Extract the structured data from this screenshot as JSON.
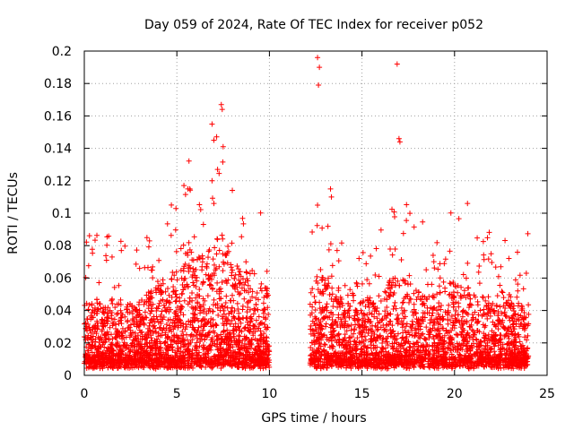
{
  "chart_data": {
    "type": "scatter",
    "title": "Day 059 of 2024, Rate Of TEC Index for receiver p052",
    "xlabel": "GPS time / hours",
    "ylabel": "ROTI / TECUs",
    "xlim": [
      0,
      25
    ],
    "ylim": [
      0,
      0.2
    ],
    "xticks": [
      0,
      5,
      10,
      15,
      20,
      25
    ],
    "yticks": [
      0,
      0.02,
      0.04,
      0.06,
      0.08,
      0.1,
      0.12,
      0.14,
      0.16,
      0.18,
      0.2
    ],
    "xtick_labels": [
      "0",
      "5",
      "10",
      "15",
      "20",
      "25"
    ],
    "ytick_labels": [
      "0",
      "0.02",
      "0.04",
      "0.06",
      "0.08",
      "0.1",
      "0.12",
      "0.14",
      "0.16",
      "0.18",
      "0.2"
    ],
    "grid": true,
    "marker": "+",
    "color": "#ff0000",
    "data_gap": [
      10.0,
      11.0
    ],
    "series": [
      {
        "name": "ROTI",
        "notable_points": [
          {
            "x": 12.6,
            "y": 0.196
          },
          {
            "x": 12.7,
            "y": 0.19
          },
          {
            "x": 12.65,
            "y": 0.179
          },
          {
            "x": 16.9,
            "y": 0.192
          },
          {
            "x": 17.0,
            "y": 0.146
          },
          {
            "x": 17.05,
            "y": 0.144
          },
          {
            "x": 7.4,
            "y": 0.167
          },
          {
            "x": 7.45,
            "y": 0.164
          },
          {
            "x": 6.9,
            "y": 0.155
          },
          {
            "x": 7.0,
            "y": 0.145
          },
          {
            "x": 7.5,
            "y": 0.141
          },
          {
            "x": 7.2,
            "y": 0.127
          },
          {
            "x": 6.9,
            "y": 0.12
          },
          {
            "x": 5.7,
            "y": 0.115
          },
          {
            "x": 13.3,
            "y": 0.115
          },
          {
            "x": 13.35,
            "y": 0.11
          },
          {
            "x": 12.6,
            "y": 0.105
          },
          {
            "x": 20.7,
            "y": 0.106
          },
          {
            "x": 7.0,
            "y": 0.106
          },
          {
            "x": 2.0,
            "y": 0.077
          },
          {
            "x": 1.2,
            "y": 0.071
          },
          {
            "x": 23.4,
            "y": 0.076
          },
          {
            "x": 22.5,
            "y": 0.067
          }
        ]
      }
    ]
  }
}
